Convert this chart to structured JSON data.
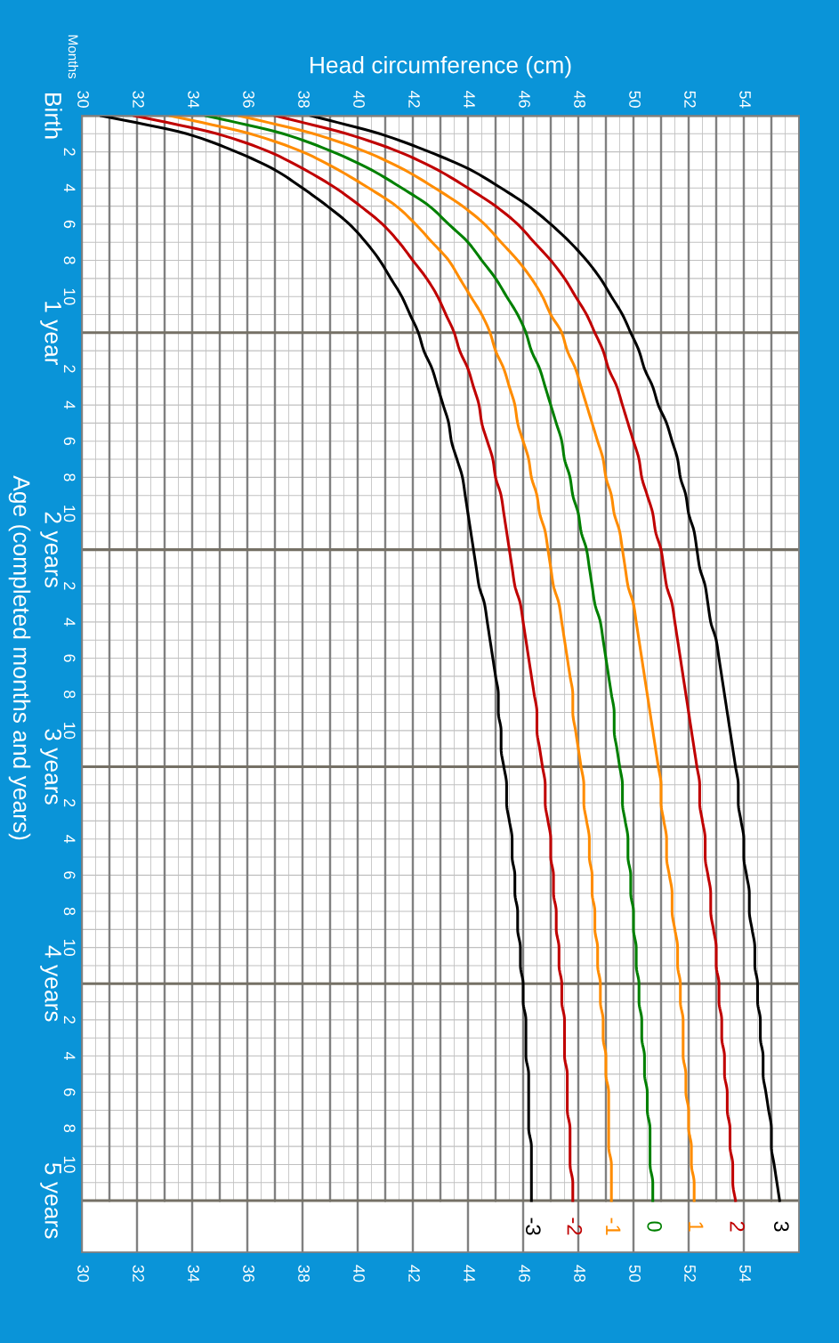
{
  "chart_data": {
    "type": "line",
    "orientation": "horizontal",
    "x2label": "Head circumference (cm)",
    "ylabel": "Age (completed months and years)",
    "annotations": [
      "Months"
    ],
    "categories": [
      "Birth",
      null,
      "2",
      null,
      "4",
      null,
      "6",
      null,
      "8",
      null,
      "10",
      null,
      "1 year",
      null,
      "2",
      null,
      "4",
      null,
      "6",
      null,
      "8",
      null,
      "10",
      null,
      "2 years",
      null,
      "2",
      null,
      "4",
      null,
      "6",
      null,
      "8",
      null,
      "10",
      null,
      "3 years",
      null,
      "2",
      null,
      "4",
      null,
      "6",
      null,
      "8",
      null,
      "10",
      null,
      "4 years",
      null,
      "2",
      null,
      "4",
      null,
      "6",
      null,
      "8",
      null,
      "10",
      null,
      "5 years"
    ],
    "series": [
      {
        "name": "-3",
        "color": "#000000",
        "values": [
          30.7,
          33.8,
          35.6,
          37.0,
          38.0,
          38.9,
          39.7,
          40.3,
          40.8,
          41.2,
          41.6,
          41.9,
          42.2,
          42.4,
          42.7,
          42.9,
          43.1,
          43.3,
          43.4,
          43.6,
          43.8,
          43.9,
          44.0,
          44.1,
          44.2,
          44.3,
          44.4,
          44.6,
          44.7,
          44.8,
          44.9,
          45.0,
          45.1,
          45.1,
          45.2,
          45.2,
          45.3,
          45.4,
          45.4,
          45.5,
          45.6,
          45.6,
          45.7,
          45.7,
          45.8,
          45.8,
          45.9,
          45.9,
          46.0,
          46.0,
          46.1,
          46.1,
          46.1,
          46.2,
          46.2,
          46.2,
          46.2,
          46.3,
          46.3,
          46.3,
          46.3
        ]
      },
      {
        "name": "-2",
        "color": "#c00000",
        "values": [
          31.9,
          34.9,
          36.8,
          38.1,
          39.2,
          40.1,
          40.9,
          41.5,
          42.0,
          42.5,
          42.9,
          43.2,
          43.5,
          43.7,
          44.0,
          44.2,
          44.4,
          44.5,
          44.7,
          44.9,
          45.0,
          45.2,
          45.3,
          45.4,
          45.5,
          45.6,
          45.7,
          45.9,
          46.0,
          46.1,
          46.2,
          46.3,
          46.4,
          46.5,
          46.5,
          46.6,
          46.7,
          46.8,
          46.8,
          46.9,
          47.0,
          47.0,
          47.1,
          47.1,
          47.2,
          47.2,
          47.3,
          47.3,
          47.4,
          47.4,
          47.5,
          47.5,
          47.5,
          47.6,
          47.6,
          47.6,
          47.7,
          47.7,
          47.7,
          47.8,
          47.8
        ]
      },
      {
        "name": "-1",
        "color": "#ff8c00",
        "values": [
          33.2,
          36.1,
          38.0,
          39.3,
          40.4,
          41.4,
          42.1,
          42.7,
          43.3,
          43.7,
          44.1,
          44.5,
          44.8,
          45.0,
          45.3,
          45.5,
          45.7,
          45.8,
          46.0,
          46.2,
          46.3,
          46.5,
          46.6,
          46.8,
          46.9,
          47.0,
          47.1,
          47.3,
          47.4,
          47.5,
          47.6,
          47.7,
          47.8,
          47.8,
          47.9,
          48.0,
          48.1,
          48.2,
          48.2,
          48.3,
          48.4,
          48.4,
          48.5,
          48.5,
          48.6,
          48.6,
          48.7,
          48.7,
          48.8,
          48.8,
          48.9,
          48.9,
          49.0,
          49.0,
          49.1,
          49.1,
          49.1,
          49.1,
          49.2,
          49.2,
          49.2
        ]
      },
      {
        "name": "0",
        "color": "#008000",
        "values": [
          34.5,
          37.3,
          39.1,
          40.5,
          41.6,
          42.6,
          43.3,
          44.0,
          44.5,
          45.0,
          45.4,
          45.8,
          46.1,
          46.3,
          46.6,
          46.8,
          47.0,
          47.2,
          47.4,
          47.5,
          47.7,
          47.8,
          48.0,
          48.1,
          48.3,
          48.4,
          48.5,
          48.6,
          48.8,
          48.9,
          49.0,
          49.1,
          49.2,
          49.3,
          49.3,
          49.4,
          49.5,
          49.6,
          49.6,
          49.7,
          49.8,
          49.8,
          49.9,
          49.9,
          50.0,
          50.0,
          50.1,
          50.1,
          50.2,
          50.2,
          50.3,
          50.3,
          50.4,
          50.4,
          50.5,
          50.5,
          50.6,
          50.6,
          50.6,
          50.7,
          50.7
        ]
      },
      {
        "name": "1",
        "color": "#ff8c00",
        "values": [
          35.7,
          38.4,
          40.3,
          41.7,
          42.8,
          43.8,
          44.6,
          45.2,
          45.8,
          46.3,
          46.7,
          47.0,
          47.4,
          47.6,
          47.9,
          48.1,
          48.3,
          48.5,
          48.7,
          48.9,
          49.0,
          49.2,
          49.3,
          49.5,
          49.6,
          49.7,
          49.8,
          50.0,
          50.1,
          50.2,
          50.3,
          50.4,
          50.5,
          50.6,
          50.7,
          50.8,
          50.9,
          51.0,
          51.0,
          51.1,
          51.2,
          51.2,
          51.3,
          51.4,
          51.4,
          51.5,
          51.6,
          51.6,
          51.7,
          51.7,
          51.8,
          51.8,
          51.8,
          51.9,
          51.9,
          52.0,
          52.0,
          52.1,
          52.1,
          52.2,
          52.2
        ]
      },
      {
        "name": "2",
        "color": "#c00000",
        "values": [
          37.0,
          39.6,
          41.5,
          42.9,
          44.0,
          45.0,
          45.8,
          46.4,
          47.0,
          47.5,
          47.9,
          48.3,
          48.6,
          48.9,
          49.1,
          49.4,
          49.6,
          49.8,
          50.0,
          50.2,
          50.3,
          50.5,
          50.7,
          50.8,
          51.0,
          51.1,
          51.2,
          51.4,
          51.5,
          51.6,
          51.7,
          51.8,
          51.9,
          52.0,
          52.1,
          52.2,
          52.3,
          52.4,
          52.4,
          52.5,
          52.6,
          52.6,
          52.7,
          52.8,
          52.8,
          52.9,
          53.0,
          53.0,
          53.1,
          53.1,
          53.2,
          53.2,
          53.3,
          53.3,
          53.4,
          53.4,
          53.5,
          53.5,
          53.6,
          53.6,
          53.7
        ]
      },
      {
        "name": "3",
        "color": "#000000",
        "values": [
          38.3,
          40.8,
          42.6,
          44.1,
          45.2,
          46.2,
          47.0,
          47.7,
          48.3,
          48.8,
          49.2,
          49.6,
          49.9,
          50.2,
          50.4,
          50.7,
          50.9,
          51.2,
          51.4,
          51.6,
          51.7,
          51.9,
          52.0,
          52.2,
          52.3,
          52.4,
          52.6,
          52.7,
          52.8,
          53.0,
          53.1,
          53.2,
          53.3,
          53.4,
          53.5,
          53.6,
          53.7,
          53.8,
          53.8,
          53.9,
          54.0,
          54.0,
          54.1,
          54.2,
          54.2,
          54.3,
          54.4,
          54.4,
          54.5,
          54.5,
          54.6,
          54.6,
          54.7,
          54.7,
          54.8,
          54.9,
          55.0,
          55.0,
          55.1,
          55.2,
          55.3
        ]
      }
    ],
    "xlim": [
      30,
      56
    ],
    "xticks": [
      30,
      {
        "value": 31,
        "label": null
      },
      32,
      {
        "value": 33,
        "label": null
      },
      34,
      {
        "value": 35,
        "label": null
      },
      36,
      {
        "value": 37,
        "label": null
      },
      38,
      {
        "value": 39,
        "label": null
      },
      40,
      {
        "value": 41,
        "label": null
      },
      42,
      {
        "value": 43,
        "label": null
      },
      44,
      {
        "value": 45,
        "label": null
      },
      46,
      {
        "value": 47,
        "label": null
      },
      48,
      {
        "value": 49,
        "label": null
      },
      50,
      {
        "value": 51,
        "label": null
      },
      52,
      {
        "value": 53,
        "label": null
      },
      54,
      {
        "value": 55,
        "label": null
      }
    ],
    "x2lim": [
      30,
      56
    ],
    "x2ticks": [
      30,
      {
        "value": 31,
        "label": null
      },
      32,
      {
        "value": 33,
        "label": null
      },
      34,
      {
        "value": 35,
        "label": null
      },
      36,
      {
        "value": 37,
        "label": null
      },
      38,
      {
        "value": 39,
        "label": null
      },
      40,
      {
        "value": 41,
        "label": null
      },
      42,
      {
        "value": 43,
        "label": null
      },
      44,
      {
        "value": 45,
        "label": null
      },
      46,
      {
        "value": 47,
        "label": null
      },
      48,
      {
        "value": 49,
        "label": null
      },
      50,
      {
        "value": 51,
        "label": null
      },
      52,
      {
        "value": 53,
        "label": null
      },
      54,
      {
        "value": 55,
        "label": null
      }
    ],
    "grid": true,
    "legend": false,
    "marker": "none",
    "line_style": "solid"
  }
}
